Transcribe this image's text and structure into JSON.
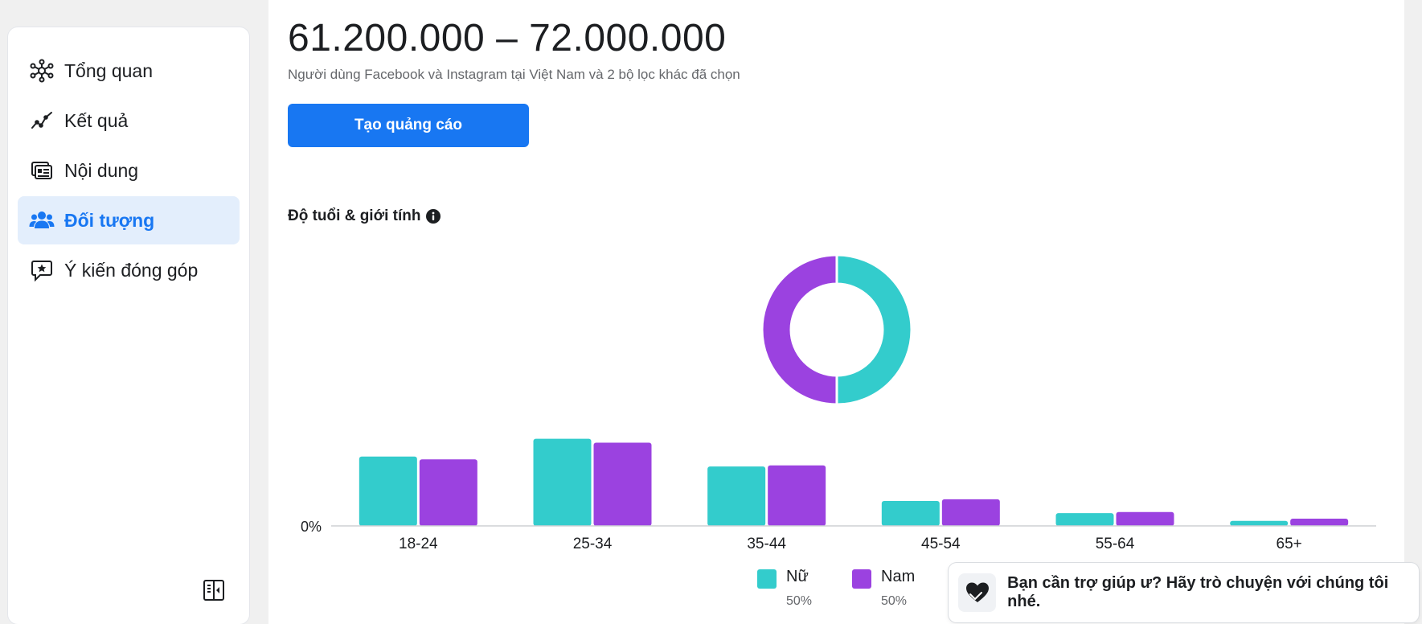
{
  "sidebar": {
    "items": [
      {
        "label": "Tổng quan",
        "icon": "network-icon"
      },
      {
        "label": "Kết quả",
        "icon": "trend-line-icon"
      },
      {
        "label": "Nội dung",
        "icon": "content-cards-icon"
      },
      {
        "label": "Đối tượng",
        "icon": "people-icon",
        "active": true
      },
      {
        "label": "Ý kiến đóng góp",
        "icon": "feedback-star-icon"
      }
    ],
    "collapse_icon": "collapse-sidebar-icon"
  },
  "main": {
    "audience_range": "61.200.000 – 72.000.000",
    "audience_description": "Người dùng Facebook và Instagram tại Việt Nam và 2 bộ lọc khác đã chọn",
    "create_ad_label": "Tạo quảng cáo",
    "section_title": "Độ tuổi & giới tính",
    "section_info_icon": "info-icon"
  },
  "colors": {
    "female": "#33cccc",
    "male": "#9b42e0",
    "accent": "#1877f2",
    "active_bg": "#e3eefc"
  },
  "chart_data": [
    {
      "type": "pie",
      "variant": "donut",
      "slices": [
        {
          "name": "Nữ",
          "value": 50
        },
        {
          "name": "Nam",
          "value": 50
        }
      ]
    },
    {
      "type": "bar",
      "categories": [
        "18-24",
        "25-34",
        "35-44",
        "45-54",
        "55-64",
        "65+"
      ],
      "series": [
        {
          "name": "Nữ",
          "values": [
            12.5,
            15.7,
            10.7,
            4.5,
            2.3,
            0.9
          ]
        },
        {
          "name": "Nam",
          "values": [
            12.0,
            15.0,
            10.9,
            4.8,
            2.5,
            1.3
          ]
        }
      ],
      "ylabel_zero": "0%",
      "ylim": [
        0,
        20
      ],
      "legend_position": "bottom-center",
      "grid": false
    }
  ],
  "legend": [
    {
      "name": "Nữ",
      "pct": "50%"
    },
    {
      "name": "Nam",
      "pct": "50%"
    }
  ],
  "help": {
    "text": "Bạn cần trợ giúp ư? Hãy trò chuyện với chúng tôi nhé.",
    "icon": "heart-chat-icon"
  }
}
